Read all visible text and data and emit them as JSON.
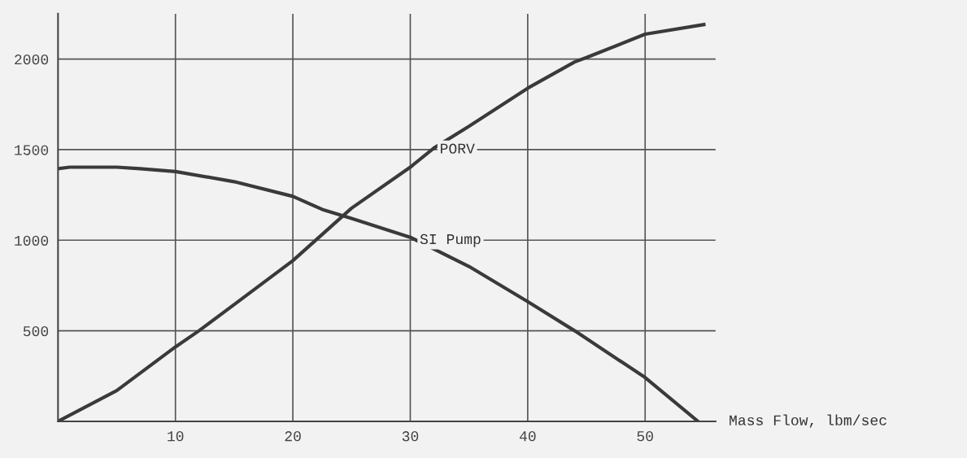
{
  "chart_data": {
    "type": "line",
    "xlabel": "Mass Flow, lbm/sec",
    "xlim": [
      0,
      56
    ],
    "ylim": [
      0,
      2250
    ],
    "xticks": [
      10,
      20,
      30,
      40,
      50
    ],
    "yticks": [
      500,
      1000,
      1500,
      2000
    ],
    "grid": true,
    "marker": "none",
    "line_style": "solid",
    "series": [
      {
        "x": [
          0,
          5,
          10,
          12,
          15,
          20,
          25,
          30,
          32,
          35,
          40,
          44,
          45,
          50,
          55
        ],
        "values": [
          0,
          170,
          411,
          500,
          645,
          887,
          1177,
          1403,
          1508,
          1629,
          1839,
          1984,
          2008,
          2137,
          2190
        ],
        "color": "#3a3a3a"
      },
      {
        "x": [
          0,
          1,
          5,
          7,
          10,
          15,
          20,
          22.5,
          25,
          30,
          35,
          40,
          44,
          50,
          54.5
        ],
        "values": [
          1395,
          1403,
          1403,
          1395,
          1379,
          1323,
          1242,
          1170,
          1120,
          1016,
          855,
          661,
          500,
          242,
          0
        ],
        "color": "#3a3a3a"
      }
    ],
    "annotations": [
      {
        "text": "PORV",
        "x": 32.5,
        "y": 1500
      },
      {
        "text": "SI Pump",
        "x": 30.8,
        "y": 1000
      }
    ]
  }
}
